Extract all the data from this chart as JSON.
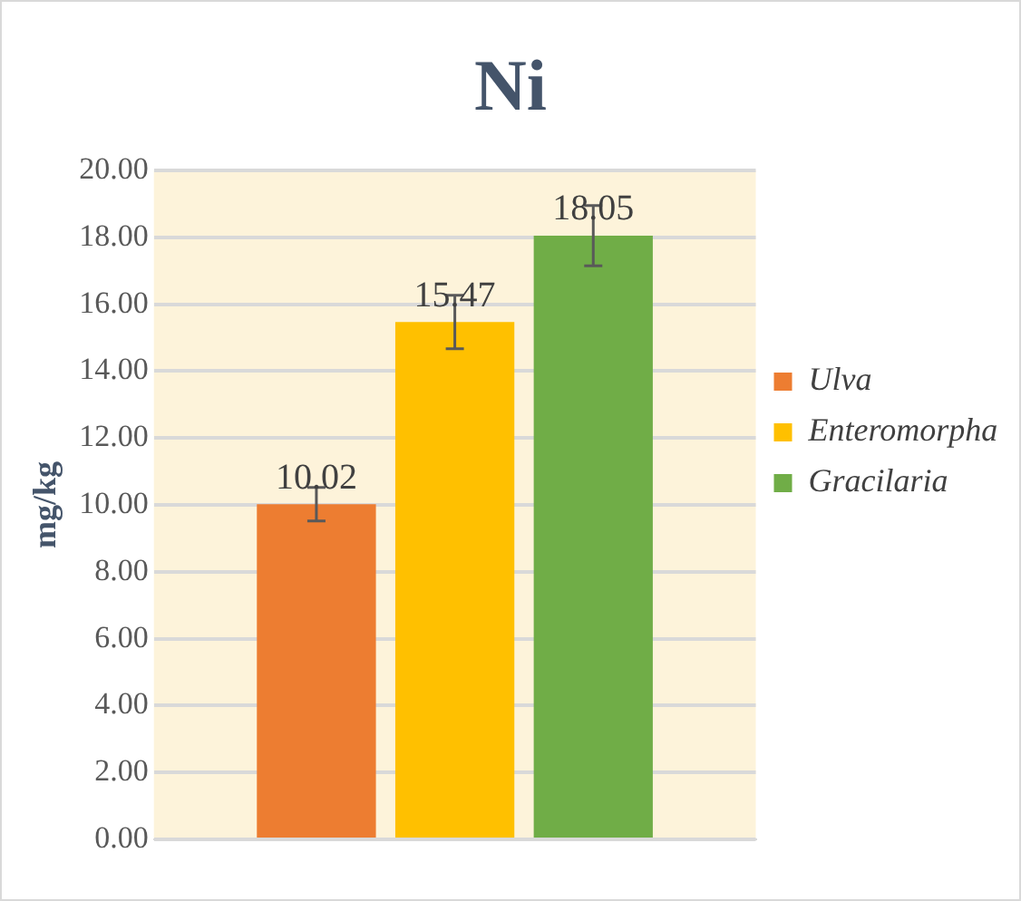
{
  "chart_data": {
    "type": "bar",
    "title": "Ni",
    "ylabel": "mg/kg",
    "categories": [
      null
    ],
    "series": [
      {
        "name": "Ulva",
        "color": "#ed7d31",
        "values": [
          10.02
        ],
        "errors": [
          0.5
        ]
      },
      {
        "name": "Enteromorpha",
        "color": "#ffc000",
        "values": [
          15.47
        ],
        "errors": [
          0.8
        ]
      },
      {
        "name": "Gracilaria",
        "color": "#70ad47",
        "values": [
          18.05
        ],
        "errors": [
          0.9
        ]
      }
    ],
    "ylim": [
      0,
      20
    ],
    "yticks": [
      {
        "value": 0,
        "label": "0.00"
      },
      {
        "value": 2,
        "label": "2.00"
      },
      {
        "value": 4,
        "label": "4.00"
      },
      {
        "value": 6,
        "label": "6.00"
      },
      {
        "value": 8,
        "label": "8.00"
      },
      {
        "value": 10,
        "label": "10.00"
      },
      {
        "value": 12,
        "label": "12.00"
      },
      {
        "value": 14,
        "label": "14.00"
      },
      {
        "value": 16,
        "label": "16.00"
      },
      {
        "value": 18,
        "label": "18.00"
      },
      {
        "value": 20,
        "label": "20.00"
      }
    ],
    "grid": "y",
    "legend": "right",
    "data_labels": true
  }
}
